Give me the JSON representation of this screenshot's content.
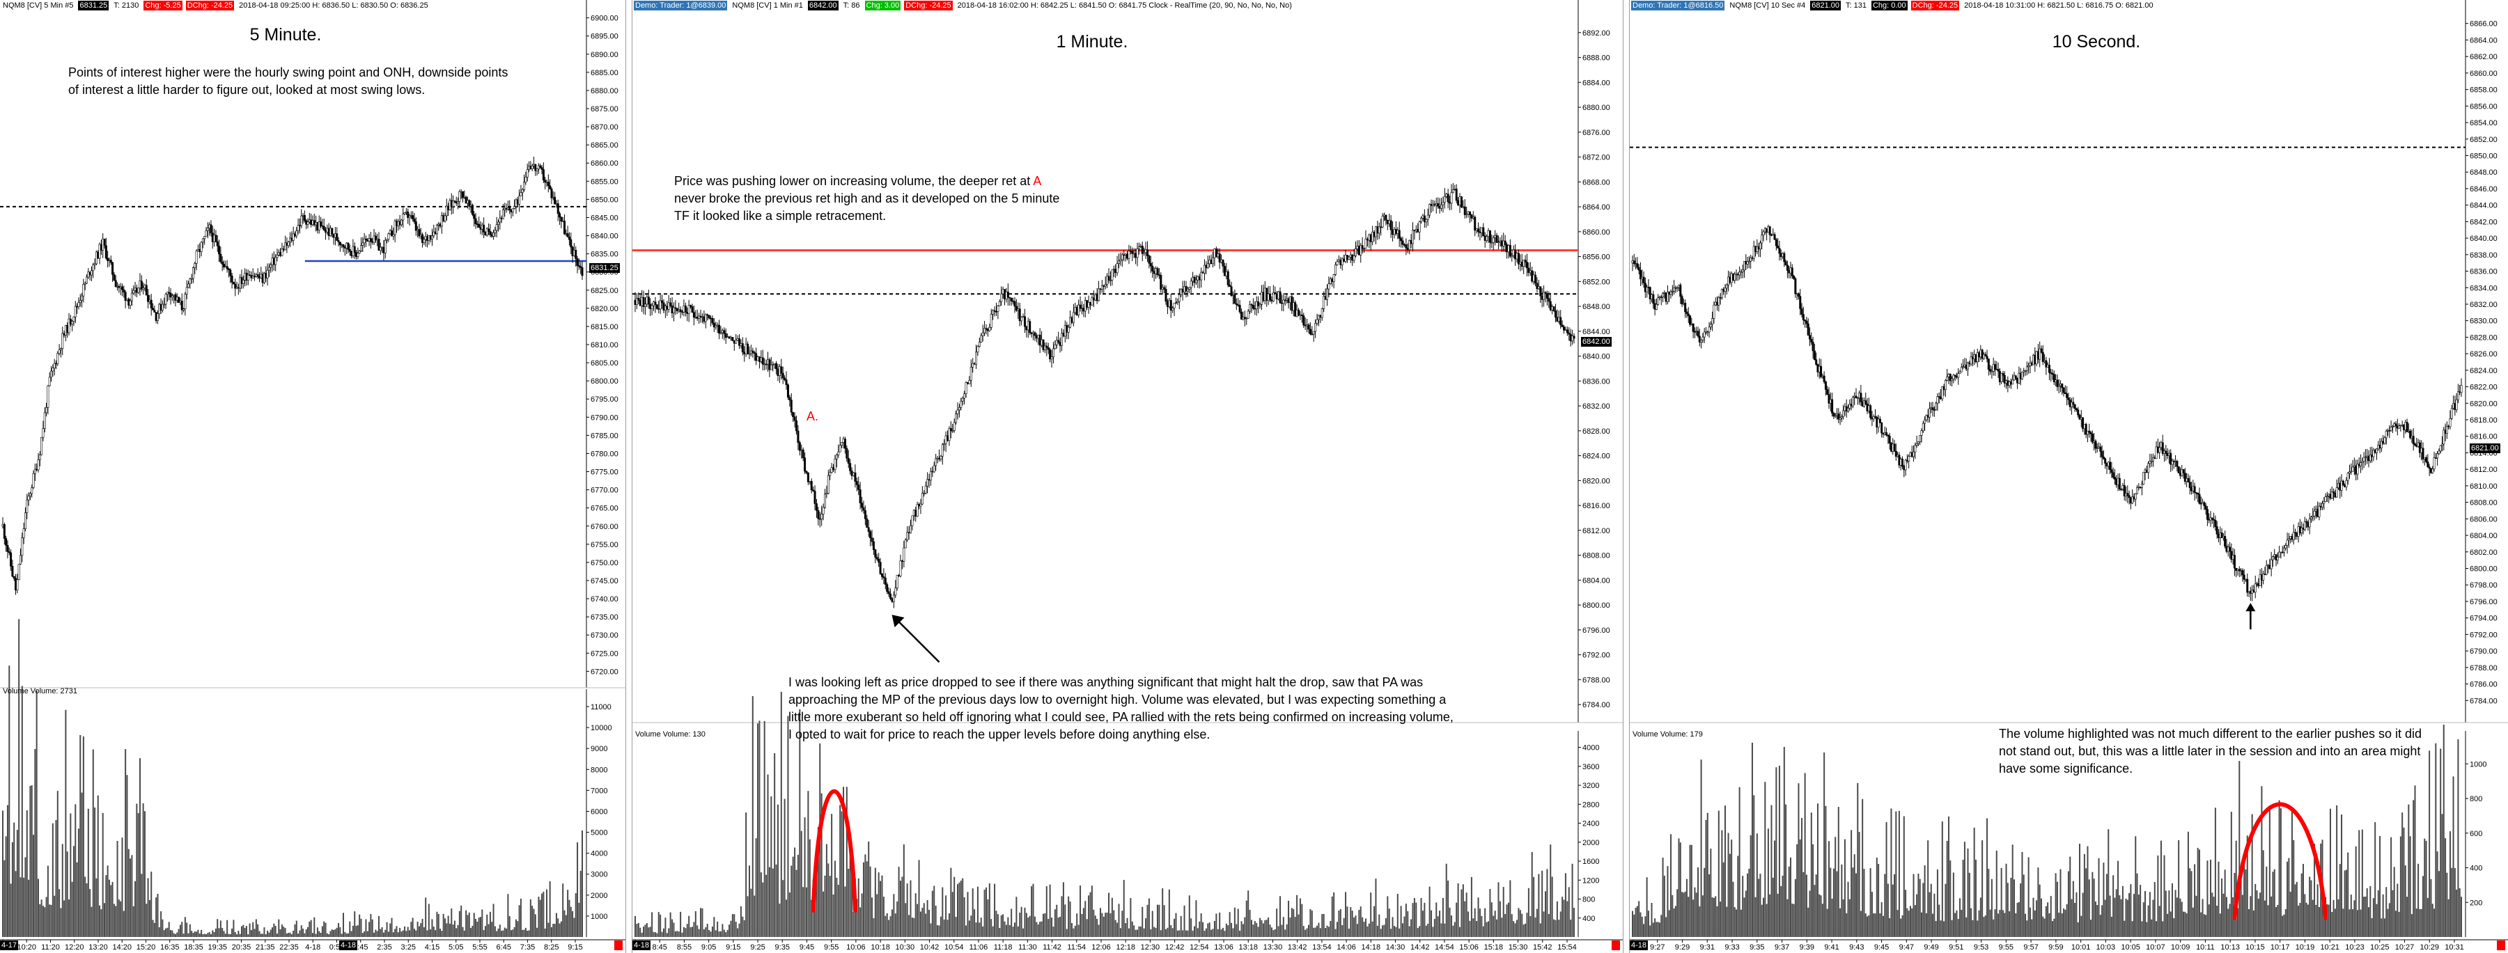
{
  "panels": [
    {
      "key": "p5m",
      "header": [
        {
          "text": "NQM8 [CV]  5 Min  #5",
          "style": "plain"
        },
        {
          "text": "6831.25",
          "style": "dark"
        },
        {
          "text": "T: 2130",
          "style": "plain"
        },
        {
          "text": "Chg: -5.25",
          "style": "red"
        },
        {
          "text": "DChg: -24.25",
          "style": "red"
        },
        {
          "text": "2018-04-18 09:25:00 H: 6836.50  L: 6830.50  O: 6836.25",
          "style": "plain"
        }
      ],
      "title": "5 Minute.",
      "note": "Points of interest higher were the hourly swing point and ONH, downside points of interest a little harder to figure out, looked at most swing lows.",
      "volume_label": "Volume  Volume: 2731",
      "last_price_badge": "6831.25",
      "date_badges": [
        "4-17",
        "4-18"
      ]
    },
    {
      "key": "p1m",
      "header": [
        {
          "text": "Demo: Trader: 1@6839.00",
          "style": "blue"
        },
        {
          "text": "NQM8 [CV]  1 Min  #1",
          "style": "plain"
        },
        {
          "text": "6842.00",
          "style": "dark"
        },
        {
          "text": "T: 86",
          "style": "plain"
        },
        {
          "text": "Chg: 3.00",
          "style": "green"
        },
        {
          "text": "DChg: -24.25",
          "style": "red"
        },
        {
          "text": "2018-04-18 16:02:00  H: 6842.25  L: 6841.50  O: 6841.75  Clock - RealTime   (20, 90, No, No, No, No)",
          "style": "plain"
        }
      ],
      "title": "1 Minute.",
      "note": "Price was pushing lower on increasing volume, the deeper ret at [A] never broke the previous ret high and as it developed on the 5 minute TF it looked like a simple retracement.",
      "note_highlight": "A",
      "label_a": "A.",
      "note2": "I was looking left as price dropped to see if there was anything significant that might halt the drop, saw that PA was approaching the MP of the previous days low to overnight high.  Volume was elevated, but I was expecting something a little more exuberant so held off ignoring what I could see, PA rallied with the rets being confirmed on increasing volume, I opted to wait for price to reach the upper levels before doing anything else.",
      "volume_label": "Volume  Volume: 130",
      "last_price_badge": "6842.00",
      "date_badges": [
        "4-18"
      ]
    },
    {
      "key": "p10s",
      "header": [
        {
          "text": "Demo: Trader: 1@6816.50",
          "style": "blue"
        },
        {
          "text": "NQM8 [CV]  10 Sec  #4",
          "style": "plain"
        },
        {
          "text": "6821.00",
          "style": "dark"
        },
        {
          "text": "T: 131",
          "style": "plain"
        },
        {
          "text": "Chg: 0.00",
          "style": "dark"
        },
        {
          "text": "DChg: -24.25",
          "style": "red"
        },
        {
          "text": "2018-04-18 10:31:00  H: 6821.50  L: 6816.75  O: 6821.00",
          "style": "plain"
        }
      ],
      "title": "10 Second.",
      "note": "The volume highlighted was not much different to the earlier pushes so it did not stand out, but, this was a little later in the session and into an area might have some significance.",
      "volume_label": "Volume  Volume: 179",
      "last_price_badge": "6821.00",
      "date_badges": [
        "4-18"
      ]
    }
  ],
  "colors": {
    "candle": "#000000",
    "volume": "#4a4a4a",
    "resistance_line": "#ff3b30",
    "support_line": "#1f3fd0",
    "annotation": "#ff0000",
    "reference_line": "#000000"
  },
  "chart_data": [
    {
      "type": "candlestick",
      "title": "5 Minute.",
      "ylim": [
        6717,
        6903
      ],
      "y_ticks": [
        6720,
        6725,
        6730,
        6735,
        6740,
        6745,
        6750,
        6755,
        6760,
        6765,
        6770,
        6775,
        6780,
        6785,
        6790,
        6795,
        6800,
        6805,
        6810,
        6815,
        6820,
        6825,
        6830,
        6835,
        6840,
        6845,
        6850,
        6855,
        6860,
        6865,
        6870,
        6875,
        6880,
        6885,
        6890,
        6895,
        6900
      ],
      "x_ticks": [
        "4-17",
        "10:20",
        "11:20",
        "12:20",
        "13:20",
        "14:20",
        "15:20",
        "16:35",
        "18:35",
        "19:35",
        "20:35",
        "21:35",
        "22:35",
        "4-18",
        "0:55",
        "1:45",
        "2:35",
        "3:25",
        "4:15",
        "5:05",
        "5:55",
        "6:45",
        "7:35",
        "8:25",
        "9:15"
      ],
      "price_path": [
        [
          0,
          6760
        ],
        [
          4,
          6742
        ],
        [
          7,
          6765
        ],
        [
          11,
          6780
        ],
        [
          14,
          6800
        ],
        [
          18,
          6812
        ],
        [
          22,
          6820
        ],
        [
          26,
          6830
        ],
        [
          30,
          6838
        ],
        [
          34,
          6827
        ],
        [
          38,
          6822
        ],
        [
          42,
          6827
        ],
        [
          46,
          6818
        ],
        [
          50,
          6825
        ],
        [
          54,
          6820
        ],
        [
          58,
          6834
        ],
        [
          62,
          6842
        ],
        [
          66,
          6833
        ],
        [
          70,
          6826
        ],
        [
          74,
          6830
        ],
        [
          78,
          6828
        ],
        [
          82,
          6834
        ],
        [
          86,
          6838
        ],
        [
          90,
          6845
        ],
        [
          94,
          6843
        ],
        [
          98,
          6841
        ],
        [
          102,
          6838
        ],
        [
          106,
          6835
        ],
        [
          110,
          6840
        ],
        [
          114,
          6836
        ],
        [
          118,
          6843
        ],
        [
          122,
          6846
        ],
        [
          126,
          6838
        ],
        [
          130,
          6842
        ],
        [
          134,
          6848
        ],
        [
          138,
          6852
        ],
        [
          142,
          6844
        ],
        [
          146,
          6840
        ],
        [
          150,
          6846
        ],
        [
          154,
          6848
        ],
        [
          158,
          6860
        ],
        [
          162,
          6857
        ],
        [
          166,
          6849
        ],
        [
          170,
          6838
        ],
        [
          174,
          6830
        ]
      ],
      "reference_levels": [
        {
          "value": 6848,
          "style": "dashed"
        },
        {
          "value": 6833,
          "style": "support",
          "from_fraction": 0.52
        }
      ],
      "volume": {
        "ylim": [
          0,
          11500
        ],
        "y_ticks": [
          1000,
          2000,
          3000,
          4000,
          5000,
          6000,
          7000,
          8000,
          9000,
          10000,
          11000
        ],
        "profile": [
          [
            0,
            5000
          ],
          [
            3,
            11000
          ],
          [
            8,
            7000
          ],
          [
            15,
            5000
          ],
          [
            25,
            6000
          ],
          [
            35,
            4500
          ],
          [
            42,
            6500
          ],
          [
            46,
            2500
          ],
          [
            50,
            500
          ],
          [
            100,
            500
          ],
          [
            110,
            800
          ],
          [
            160,
            1200
          ],
          [
            175,
            2731
          ]
        ]
      }
    },
    {
      "type": "candlestick",
      "title": "1 Minute.",
      "ylim": [
        6782,
        6895
      ],
      "y_ticks": [
        6784,
        6788,
        6792,
        6796,
        6800,
        6804,
        6808,
        6812,
        6816,
        6820,
        6824,
        6828,
        6832,
        6836,
        6840,
        6844,
        6848,
        6852,
        6856,
        6860,
        6864,
        6868,
        6872,
        6876,
        6880,
        6884,
        6888,
        6892
      ],
      "x_ticks": [
        "4-18",
        "8:45",
        "8:55",
        "9:05",
        "9:15",
        "9:25",
        "9:35",
        "9:45",
        "9:55",
        "10:06",
        "10:18",
        "10:30",
        "10:42",
        "10:54",
        "11:06",
        "11:18",
        "11:30",
        "11:42",
        "11:54",
        "12:06",
        "12:18",
        "12:30",
        "12:42",
        "12:54",
        "13:06",
        "13:18",
        "13:30",
        "13:42",
        "13:54",
        "14:06",
        "14:18",
        "14:30",
        "14:42",
        "14:54",
        "15:06",
        "15:18",
        "15:30",
        "15:42",
        "15:54"
      ],
      "price_path": [
        [
          0,
          6849
        ],
        [
          5,
          6848
        ],
        [
          10,
          6847
        ],
        [
          15,
          6844
        ],
        [
          20,
          6840
        ],
        [
          25,
          6837
        ],
        [
          28,
          6824
        ],
        [
          31,
          6814
        ],
        [
          33,
          6822
        ],
        [
          35,
          6826
        ],
        [
          37,
          6820
        ],
        [
          40,
          6810
        ],
        [
          43,
          6800
        ],
        [
          46,
          6812
        ],
        [
          50,
          6822
        ],
        [
          54,
          6830
        ],
        [
          58,
          6842
        ],
        [
          62,
          6850
        ],
        [
          66,
          6845
        ],
        [
          70,
          6840
        ],
        [
          74,
          6847
        ],
        [
          78,
          6850
        ],
        [
          82,
          6856
        ],
        [
          86,
          6857
        ],
        [
          90,
          6848
        ],
        [
          94,
          6852
        ],
        [
          98,
          6857
        ],
        [
          102,
          6846
        ],
        [
          106,
          6850
        ],
        [
          110,
          6849
        ],
        [
          114,
          6843
        ],
        [
          118,
          6855
        ],
        [
          122,
          6857
        ],
        [
          126,
          6862
        ],
        [
          130,
          6858
        ],
        [
          134,
          6864
        ],
        [
          138,
          6866
        ],
        [
          142,
          6860
        ],
        [
          146,
          6858
        ],
        [
          150,
          6854
        ],
        [
          154,
          6848
        ],
        [
          158,
          6842
        ]
      ],
      "reference_levels": [
        {
          "value": 6857,
          "style": "resistance"
        },
        {
          "value": 6850,
          "style": "dashed"
        }
      ],
      "volume": {
        "ylim": [
          0,
          4200
        ],
        "y_ticks": [
          400,
          800,
          1200,
          1600,
          2000,
          2400,
          2800,
          3200,
          3600,
          4000
        ],
        "profile": [
          [
            0,
            300
          ],
          [
            18,
            400
          ],
          [
            19,
            2500
          ],
          [
            21,
            3500
          ],
          [
            24,
            2800
          ],
          [
            28,
            3000
          ],
          [
            32,
            2600
          ],
          [
            38,
            1800
          ],
          [
            45,
            1100
          ],
          [
            55,
            800
          ],
          [
            80,
            600
          ],
          [
            100,
            500
          ],
          [
            130,
            700
          ],
          [
            150,
            900
          ],
          [
            158,
            1400
          ]
        ],
        "highlight": [
          30,
          37
        ]
      }
    },
    {
      "type": "candlestick",
      "title": "10 Second.",
      "ylim": [
        6782,
        6868
      ],
      "y_ticks": [
        6784,
        6786,
        6788,
        6790,
        6792,
        6794,
        6796,
        6798,
        6800,
        6802,
        6804,
        6806,
        6808,
        6810,
        6812,
        6814,
        6816,
        6818,
        6820,
        6822,
        6824,
        6826,
        6828,
        6830,
        6832,
        6834,
        6836,
        6838,
        6840,
        6842,
        6844,
        6846,
        6848,
        6850,
        6852,
        6854,
        6856,
        6858,
        6860,
        6862,
        6864,
        6866
      ],
      "x_ticks": [
        "4-18",
        "9:27",
        "9:29",
        "9:31",
        "9:33",
        "9:35",
        "9:37",
        "9:39",
        "9:41",
        "9:43",
        "9:45",
        "9:47",
        "9:49",
        "9:51",
        "9:53",
        "9:55",
        "9:57",
        "9:59",
        "10:01",
        "10:03",
        "10:05",
        "10:07",
        "10:09",
        "10:11",
        "10:13",
        "10:15",
        "10:17",
        "10:19",
        "10:21",
        "10:23",
        "10:25",
        "10:27",
        "10:29",
        "10:31"
      ],
      "price_path": [
        [
          0,
          6837
        ],
        [
          3,
          6832
        ],
        [
          6,
          6834
        ],
        [
          9,
          6827
        ],
        [
          12,
          6834
        ],
        [
          15,
          6837
        ],
        [
          18,
          6841
        ],
        [
          21,
          6836
        ],
        [
          24,
          6826
        ],
        [
          27,
          6818
        ],
        [
          30,
          6821
        ],
        [
          33,
          6817
        ],
        [
          36,
          6812
        ],
        [
          39,
          6818
        ],
        [
          42,
          6823
        ],
        [
          46,
          6826
        ],
        [
          50,
          6822
        ],
        [
          54,
          6826
        ],
        [
          58,
          6820
        ],
        [
          62,
          6814
        ],
        [
          66,
          6808
        ],
        [
          70,
          6815
        ],
        [
          74,
          6810
        ],
        [
          78,
          6804
        ],
        [
          82,
          6797
        ],
        [
          86,
          6802
        ],
        [
          90,
          6806
        ],
        [
          94,
          6810
        ],
        [
          98,
          6814
        ],
        [
          102,
          6818
        ],
        [
          106,
          6812
        ],
        [
          110,
          6822
        ]
      ],
      "reference_levels": [
        {
          "value": 6851,
          "style": "dashed"
        }
      ],
      "volume": {
        "ylim": [
          0,
          1150
        ],
        "y_ticks": [
          200,
          400,
          600,
          800,
          1000
        ],
        "profile": [
          [
            0,
            150
          ],
          [
            6,
            400
          ],
          [
            12,
            600
          ],
          [
            20,
            700
          ],
          [
            26,
            550
          ],
          [
            32,
            450
          ],
          [
            40,
            350
          ],
          [
            50,
            400
          ],
          [
            60,
            300
          ],
          [
            70,
            350
          ],
          [
            80,
            550
          ],
          [
            90,
            450
          ],
          [
            100,
            400
          ],
          [
            106,
            600
          ],
          [
            110,
            900
          ]
        ],
        "highlight": [
          80,
          92
        ]
      }
    }
  ]
}
